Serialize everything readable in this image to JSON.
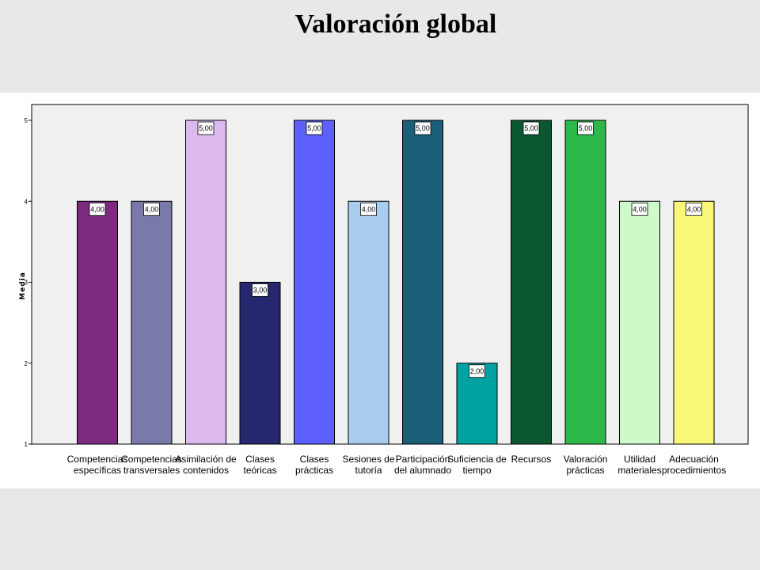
{
  "title": "Valoración global",
  "chart_data": {
    "type": "bar",
    "ylabel": "Media",
    "xlabel": "",
    "ylim": [
      1,
      5
    ],
    "yticks": [
      1,
      2,
      3,
      4,
      5
    ],
    "grid": false,
    "categories": [
      [
        "Competencias",
        "específicas"
      ],
      [
        "Competencias",
        "transversales"
      ],
      [
        "Asimilación de",
        "contenidos"
      ],
      [
        "Clases",
        "teóricas"
      ],
      [
        "Clases",
        "prácticas"
      ],
      [
        "Sesiones de",
        "tutoría"
      ],
      [
        "Participación",
        "del alumnado"
      ],
      [
        "Suficiencia de",
        "tiempo"
      ],
      [
        "Recursos"
      ],
      [
        "Valoración",
        "prácticas"
      ],
      [
        "Utilidad",
        "materiales"
      ],
      [
        "Adecuación",
        "procedimientos"
      ]
    ],
    "values": [
      4,
      4,
      5,
      3,
      5,
      4,
      5,
      2,
      5,
      5,
      4,
      4
    ],
    "data_labels": [
      "4,00",
      "4,00",
      "5,00",
      "3,00",
      "5,00",
      "4,00",
      "5,00",
      "2,00",
      "5,00",
      "5,00",
      "4,00",
      "4,00"
    ],
    "colors": [
      "#7b2a80",
      "#7a7aaa",
      "#dcbaf0",
      "#27276f",
      "#5d60fd",
      "#a9cdee",
      "#1a5e78",
      "#00a3a1",
      "#0b5830",
      "#2db84a",
      "#cdfac9",
      "#faf878"
    ]
  }
}
